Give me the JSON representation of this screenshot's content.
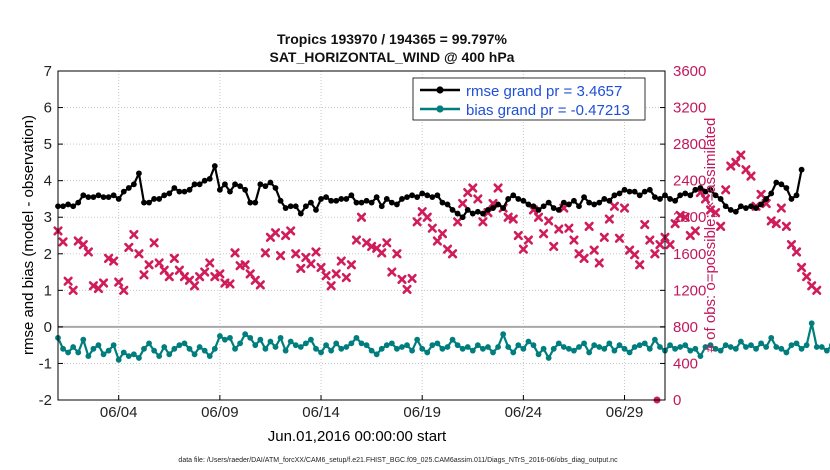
{
  "chart_data": {
    "type": "line",
    "title": "Tropics 193970 / 194365 = 99.797%",
    "subtitle": "SAT_HORIZONTAL_WIND @ 400 hPa",
    "xlabel": "Jun.01,2016 00:00:00 start",
    "ylabel_left": "rmse and bias (model - observation)",
    "ylabel_right": "# of obs: o=possible; ×=assimilated",
    "x_range_days": [
      1.0,
      31.0
    ],
    "ylim_left": [
      -2,
      7
    ],
    "ylim_right": [
      0,
      3600
    ],
    "x_tick_days": [
      4,
      9,
      14,
      19,
      24,
      29
    ],
    "x_tick_labels": [
      "06/04",
      "06/09",
      "06/14",
      "06/19",
      "06/24",
      "06/29"
    ],
    "y_left_ticks": [
      "-2",
      "-1",
      "0",
      "1",
      "2",
      "3",
      "4",
      "5",
      "6",
      "7"
    ],
    "y_right_ticks": [
      "0",
      "400",
      "800",
      "1200",
      "1600",
      "2000",
      "2400",
      "2800",
      "3200",
      "3600"
    ],
    "zero_line": 0,
    "grid": true,
    "legend_position": "top-right",
    "series": [
      {
        "name": "rmse grand pr = 3.4657",
        "axis": "left",
        "color": "#000000",
        "x_start_day": 1.0,
        "x_step_day": 0.25,
        "values": [
          3.3,
          3.3,
          3.35,
          3.3,
          3.4,
          3.6,
          3.55,
          3.55,
          3.6,
          3.55,
          3.55,
          3.6,
          3.5,
          3.7,
          3.8,
          3.9,
          4.2,
          3.4,
          3.4,
          3.5,
          3.5,
          3.6,
          3.65,
          3.8,
          3.7,
          3.7,
          3.75,
          3.9,
          3.9,
          4.0,
          4.05,
          4.4,
          3.75,
          3.9,
          3.7,
          3.9,
          3.85,
          3.75,
          3.4,
          3.4,
          3.9,
          3.85,
          3.95,
          3.8,
          3.45,
          3.25,
          3.3,
          3.3,
          3.1,
          3.3,
          3.4,
          3.2,
          3.5,
          3.55,
          3.45,
          3.45,
          3.5,
          3.5,
          3.6,
          3.4,
          3.4,
          3.45,
          3.4,
          3.55,
          3.3,
          3.5,
          3.4,
          3.35,
          3.5,
          3.55,
          3.6,
          3.55,
          3.65,
          3.6,
          3.55,
          3.6,
          3.4,
          3.35,
          3.2,
          3.1,
          3.0,
          3.2,
          3.1,
          3.15,
          3.1,
          3.2,
          3.25,
          3.35,
          3.25,
          3.5,
          3.6,
          3.5,
          3.45,
          3.35,
          3.3,
          3.2,
          3.3,
          3.4,
          3.25,
          3.2,
          3.4,
          3.35,
          3.45,
          3.3,
          3.55,
          3.4,
          3.35,
          3.4,
          3.5,
          3.45,
          3.6,
          3.65,
          3.75,
          3.7,
          3.7,
          3.6,
          3.7,
          3.75,
          3.55,
          3.5,
          3.6,
          3.5,
          3.45,
          3.6,
          3.65,
          3.6,
          3.75,
          3.8,
          3.7,
          3.75,
          3.6,
          3.5,
          3.3,
          3.2,
          3.15,
          3.3,
          3.25,
          3.3,
          3.25,
          3.35,
          3.5,
          3.65,
          3.95,
          3.9,
          3.8,
          3.5,
          3.6,
          4.3
        ]
      },
      {
        "name": "bias grand pr = -0.47213",
        "axis": "left",
        "color": "#007d7d",
        "x_start_day": 1.0,
        "x_step_day": 0.25,
        "values": [
          -0.3,
          -0.6,
          -0.7,
          -0.55,
          -0.7,
          -0.35,
          -0.8,
          -0.6,
          -0.5,
          -0.75,
          -0.65,
          -0.5,
          -0.9,
          -0.7,
          -0.8,
          -0.75,
          -0.85,
          -0.6,
          -0.45,
          -0.65,
          -0.8,
          -0.55,
          -0.75,
          -0.6,
          -0.5,
          -0.45,
          -0.6,
          -0.75,
          -0.55,
          -0.65,
          -0.8,
          -0.6,
          -0.25,
          -0.35,
          -0.3,
          -0.6,
          -0.45,
          -0.2,
          -0.3,
          -0.5,
          -0.35,
          -0.6,
          -0.4,
          -0.55,
          -0.3,
          -0.65,
          -0.4,
          -0.5,
          -0.55,
          -0.45,
          -0.35,
          -0.6,
          -0.7,
          -0.5,
          -0.65,
          -0.45,
          -0.6,
          -0.55,
          -0.45,
          -0.3,
          -0.45,
          -0.5,
          -0.65,
          -0.75,
          -0.6,
          -0.5,
          -0.45,
          -0.6,
          -0.55,
          -0.5,
          -0.65,
          -0.35,
          -0.6,
          -0.7,
          -0.5,
          -0.45,
          -0.6,
          -0.55,
          -0.35,
          -0.5,
          -0.6,
          -0.55,
          -0.65,
          -0.5,
          -0.6,
          -0.55,
          -0.7,
          -0.55,
          -0.2,
          -0.55,
          -0.7,
          -0.5,
          -0.6,
          -0.4,
          -0.5,
          -0.75,
          -0.6,
          -0.85,
          -0.6,
          -0.45,
          -0.55,
          -0.6,
          -0.65,
          -0.55,
          -0.45,
          -0.7,
          -0.5,
          -0.55,
          -0.6,
          -0.45,
          -0.65,
          -0.5,
          -0.6,
          -0.7,
          -0.55,
          -0.5,
          -0.45,
          -0.6,
          -0.35,
          -0.55,
          -0.65,
          -0.5,
          -0.6,
          -0.55,
          -0.5,
          -0.65,
          -0.6,
          -0.8,
          -0.55,
          -0.5,
          -0.6,
          -0.65,
          -0.5,
          -0.55,
          -0.6,
          -0.4,
          -0.55,
          -0.5,
          -0.6,
          -0.45,
          -0.55,
          -0.3,
          -0.55,
          -0.6,
          -0.7,
          -0.5,
          -0.45,
          -0.6,
          -0.5,
          0.1,
          -0.55,
          -0.55,
          -0.65,
          -0.5
        ]
      },
      {
        "name": "# of obs assimilated",
        "axis": "right",
        "color": "#d01c5a",
        "marker": "x",
        "x_start_day": 1.0,
        "x_step_day": 0.25,
        "values": [
          1850,
          1730,
          1300,
          1200,
          1740,
          1700,
          1620,
          1250,
          1220,
          1280,
          1550,
          1520,
          1290,
          1200,
          1670,
          1810,
          1600,
          1370,
          1480,
          1720,
          1500,
          1420,
          1350,
          1550,
          1420,
          1350,
          1310,
          1250,
          1350,
          1400,
          1500,
          1350,
          1380,
          1280,
          1270,
          1610,
          1470,
          1480,
          1380,
          1310,
          1260,
          1610,
          1780,
          1830,
          1580,
          1800,
          1850,
          1600,
          1440,
          1560,
          1490,
          1620,
          1450,
          1360,
          1250,
          1380,
          1520,
          1340,
          1480,
          1750,
          2000,
          1720,
          1680,
          1660,
          1610,
          1720,
          1400,
          1600,
          1320,
          1210,
          1330,
          1950,
          2060,
          2000,
          1880,
          1740,
          1820,
          1650,
          1600,
          1950,
          2150,
          2270,
          2320,
          2200,
          1950,
          2050,
          2150,
          2320,
          2100,
          2000,
          1980,
          1800,
          1650,
          1750,
          2080,
          2000,
          1820,
          1960,
          1680,
          1870,
          2100,
          1880,
          1750,
          1600,
          1550,
          1900,
          1640,
          1500,
          1780,
          1980,
          2120,
          1770,
          2100,
          1640,
          1590,
          1480,
          1920,
          1750,
          1600,
          1700,
          1780,
          1700,
          1930,
          2020,
          2000,
          1800,
          1850,
          2270,
          2200,
          2080,
          2050,
          1900,
          2300,
          2560,
          2600,
          2680,
          2520,
          2450,
          2120,
          2250,
          2150,
          1960,
          1930,
          2100,
          1900,
          1700,
          1620,
          1450,
          1350,
          1250,
          1200
        ]
      }
    ],
    "last_point_possible_value": 0
  },
  "footer": {
    "data_file": "data file: /Users/raeder/DAI/ATM_forcXX/CAM6_setup/f.e21.FHIST_BGC.f09_025.CAM6assim.011/Diags_NTrS_2016-06/obs_diag_output.nc"
  },
  "colors": {
    "rmse": "#000000",
    "bias": "#007d7d",
    "obs": "#d01c5a",
    "right_axis": "#c2185b",
    "legend_text": "#1f4fd8"
  }
}
